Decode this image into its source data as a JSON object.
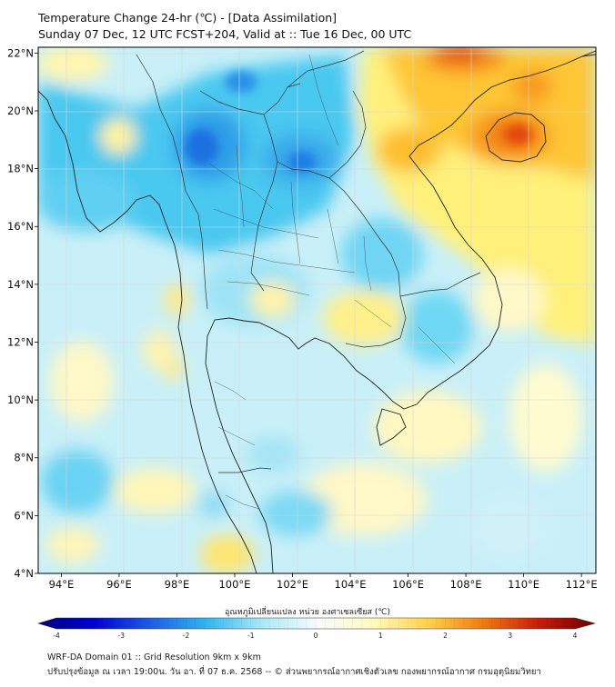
{
  "title": {
    "line1": "Temperature Change 24-hr (℃) - [Data Assimilation]",
    "line2": "Sunday 07 Dec, 12 UTC FCST+204, Valid at :: Tue 16 Dec, 00 UTC"
  },
  "map": {
    "lat_labels": [
      "22°N",
      "20°N",
      "18°N",
      "16°N",
      "14°N",
      "12°N",
      "10°N",
      "8°N",
      "6°N",
      "4°N"
    ],
    "lon_labels": [
      "94°E",
      "96°E",
      "98°E",
      "100°E",
      "102°E",
      "104°E",
      "106°E",
      "108°E",
      "110°E",
      "112°E"
    ],
    "lat_values": [
      22,
      20,
      18,
      16,
      14,
      12,
      10,
      8,
      6,
      4
    ],
    "lon_values": [
      94,
      96,
      98,
      100,
      102,
      104,
      106,
      108,
      110,
      112
    ],
    "lat_range": [
      4,
      22.2
    ],
    "lon_range": [
      93.2,
      112.5
    ]
  },
  "colorbar": {
    "label": "อุณหภูมิเปลี่ยนแปลง หน่วย องศาเซลเซียส (℃)",
    "ticks": [
      "-4",
      "-3",
      "-2",
      "-1",
      "0",
      "1",
      "2",
      "3",
      "4"
    ],
    "tick_values": [
      -4,
      -3,
      -2,
      -1,
      0,
      1,
      2,
      3,
      4
    ],
    "range": [
      -4,
      4
    ],
    "colors": [
      "#00007a",
      "#0000d0",
      "#1e5ae6",
      "#2fb4ee",
      "#a8e8f6",
      "#f6fbff",
      "#fffbc0",
      "#ffd24a",
      "#f07a10",
      "#c81a0a",
      "#6a0000"
    ]
  },
  "footer": {
    "line1": "WRF-DA Domain 01 :: Grid Resolution 9km x 9km",
    "line2": "ปรับปรุงข้อมูล ณ เวลา 19:00น. วัน อา. ที่ 07 ธ.ค. 2568 -- © ส่วนพยากรณ์อากาศเชิงตัวเลข กองพยากรณ์อากาศ กรมอุตุนิยมวิทยา"
  }
}
